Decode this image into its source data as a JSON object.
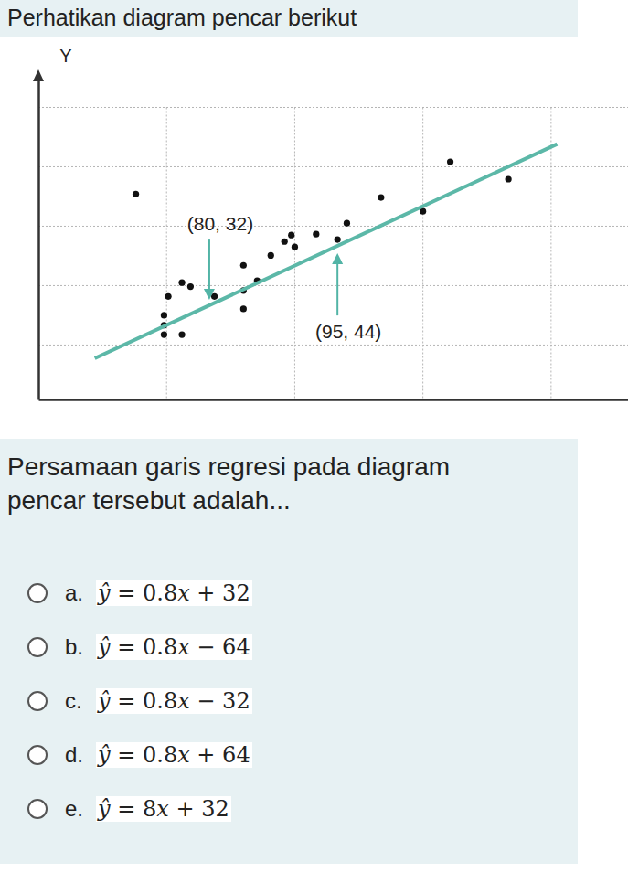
{
  "intro": "Perhatikan diagram pencar berikut",
  "chart_data": {
    "type": "scatter",
    "y_label": "Y",
    "xlim": [
      60,
      129
    ],
    "ylim": [
      13,
      78
    ],
    "xticks": [
      75,
      90,
      105,
      120
    ],
    "yticks": [
      24,
      36,
      48,
      60,
      72
    ],
    "grid": true,
    "tick_labels": false,
    "series": [
      {
        "type": "scatter",
        "marker": "circle",
        "color": "#111111",
        "x": [
          71.4,
          108.2,
          115.0,
          100.1,
          105.0,
          96.1,
          92.5,
          95.0,
          89.6,
          88.8,
          90.0,
          87.2,
          84.0,
          85.6,
          84.0,
          84.0,
          76.8,
          77.8,
          75.2,
          80.6,
          74.7,
          74.7,
          76.8,
          74.7
        ],
        "values": [
          54.5,
          61.0,
          57.5,
          53.8,
          51.0,
          48.6,
          46.4,
          45.3,
          46.2,
          44.9,
          43.8,
          42.1,
          40.1,
          37.0,
          35.0,
          31.3,
          36.6,
          35.8,
          33.8,
          33.8,
          30.0,
          28.0,
          26.1,
          26.1
        ]
      },
      {
        "type": "line",
        "line_style": "solid",
        "color": "#5cb8a8",
        "x": [
          66.6,
          120.7
        ],
        "values": [
          21.3,
          64.6
        ]
      }
    ],
    "annotations": [
      {
        "text": "(80, 32)",
        "x": 80,
        "y": 32
      },
      {
        "text": "(95, 44)",
        "x": 95,
        "y": 44
      }
    ]
  },
  "question": "Persamaan garis regresi pada diagram pencar tersebut adalah...",
  "options": [
    {
      "letter": "a.",
      "text": "ŷ = 0.8x + 32"
    },
    {
      "letter": "b.",
      "text": "ŷ = 0.8x − 64"
    },
    {
      "letter": "c.",
      "text": "ŷ = 0.8x − 32"
    },
    {
      "letter": "d.",
      "text": "ŷ = 0.8x + 64"
    },
    {
      "letter": "e.",
      "text": "ŷ = 8x + 32"
    }
  ]
}
